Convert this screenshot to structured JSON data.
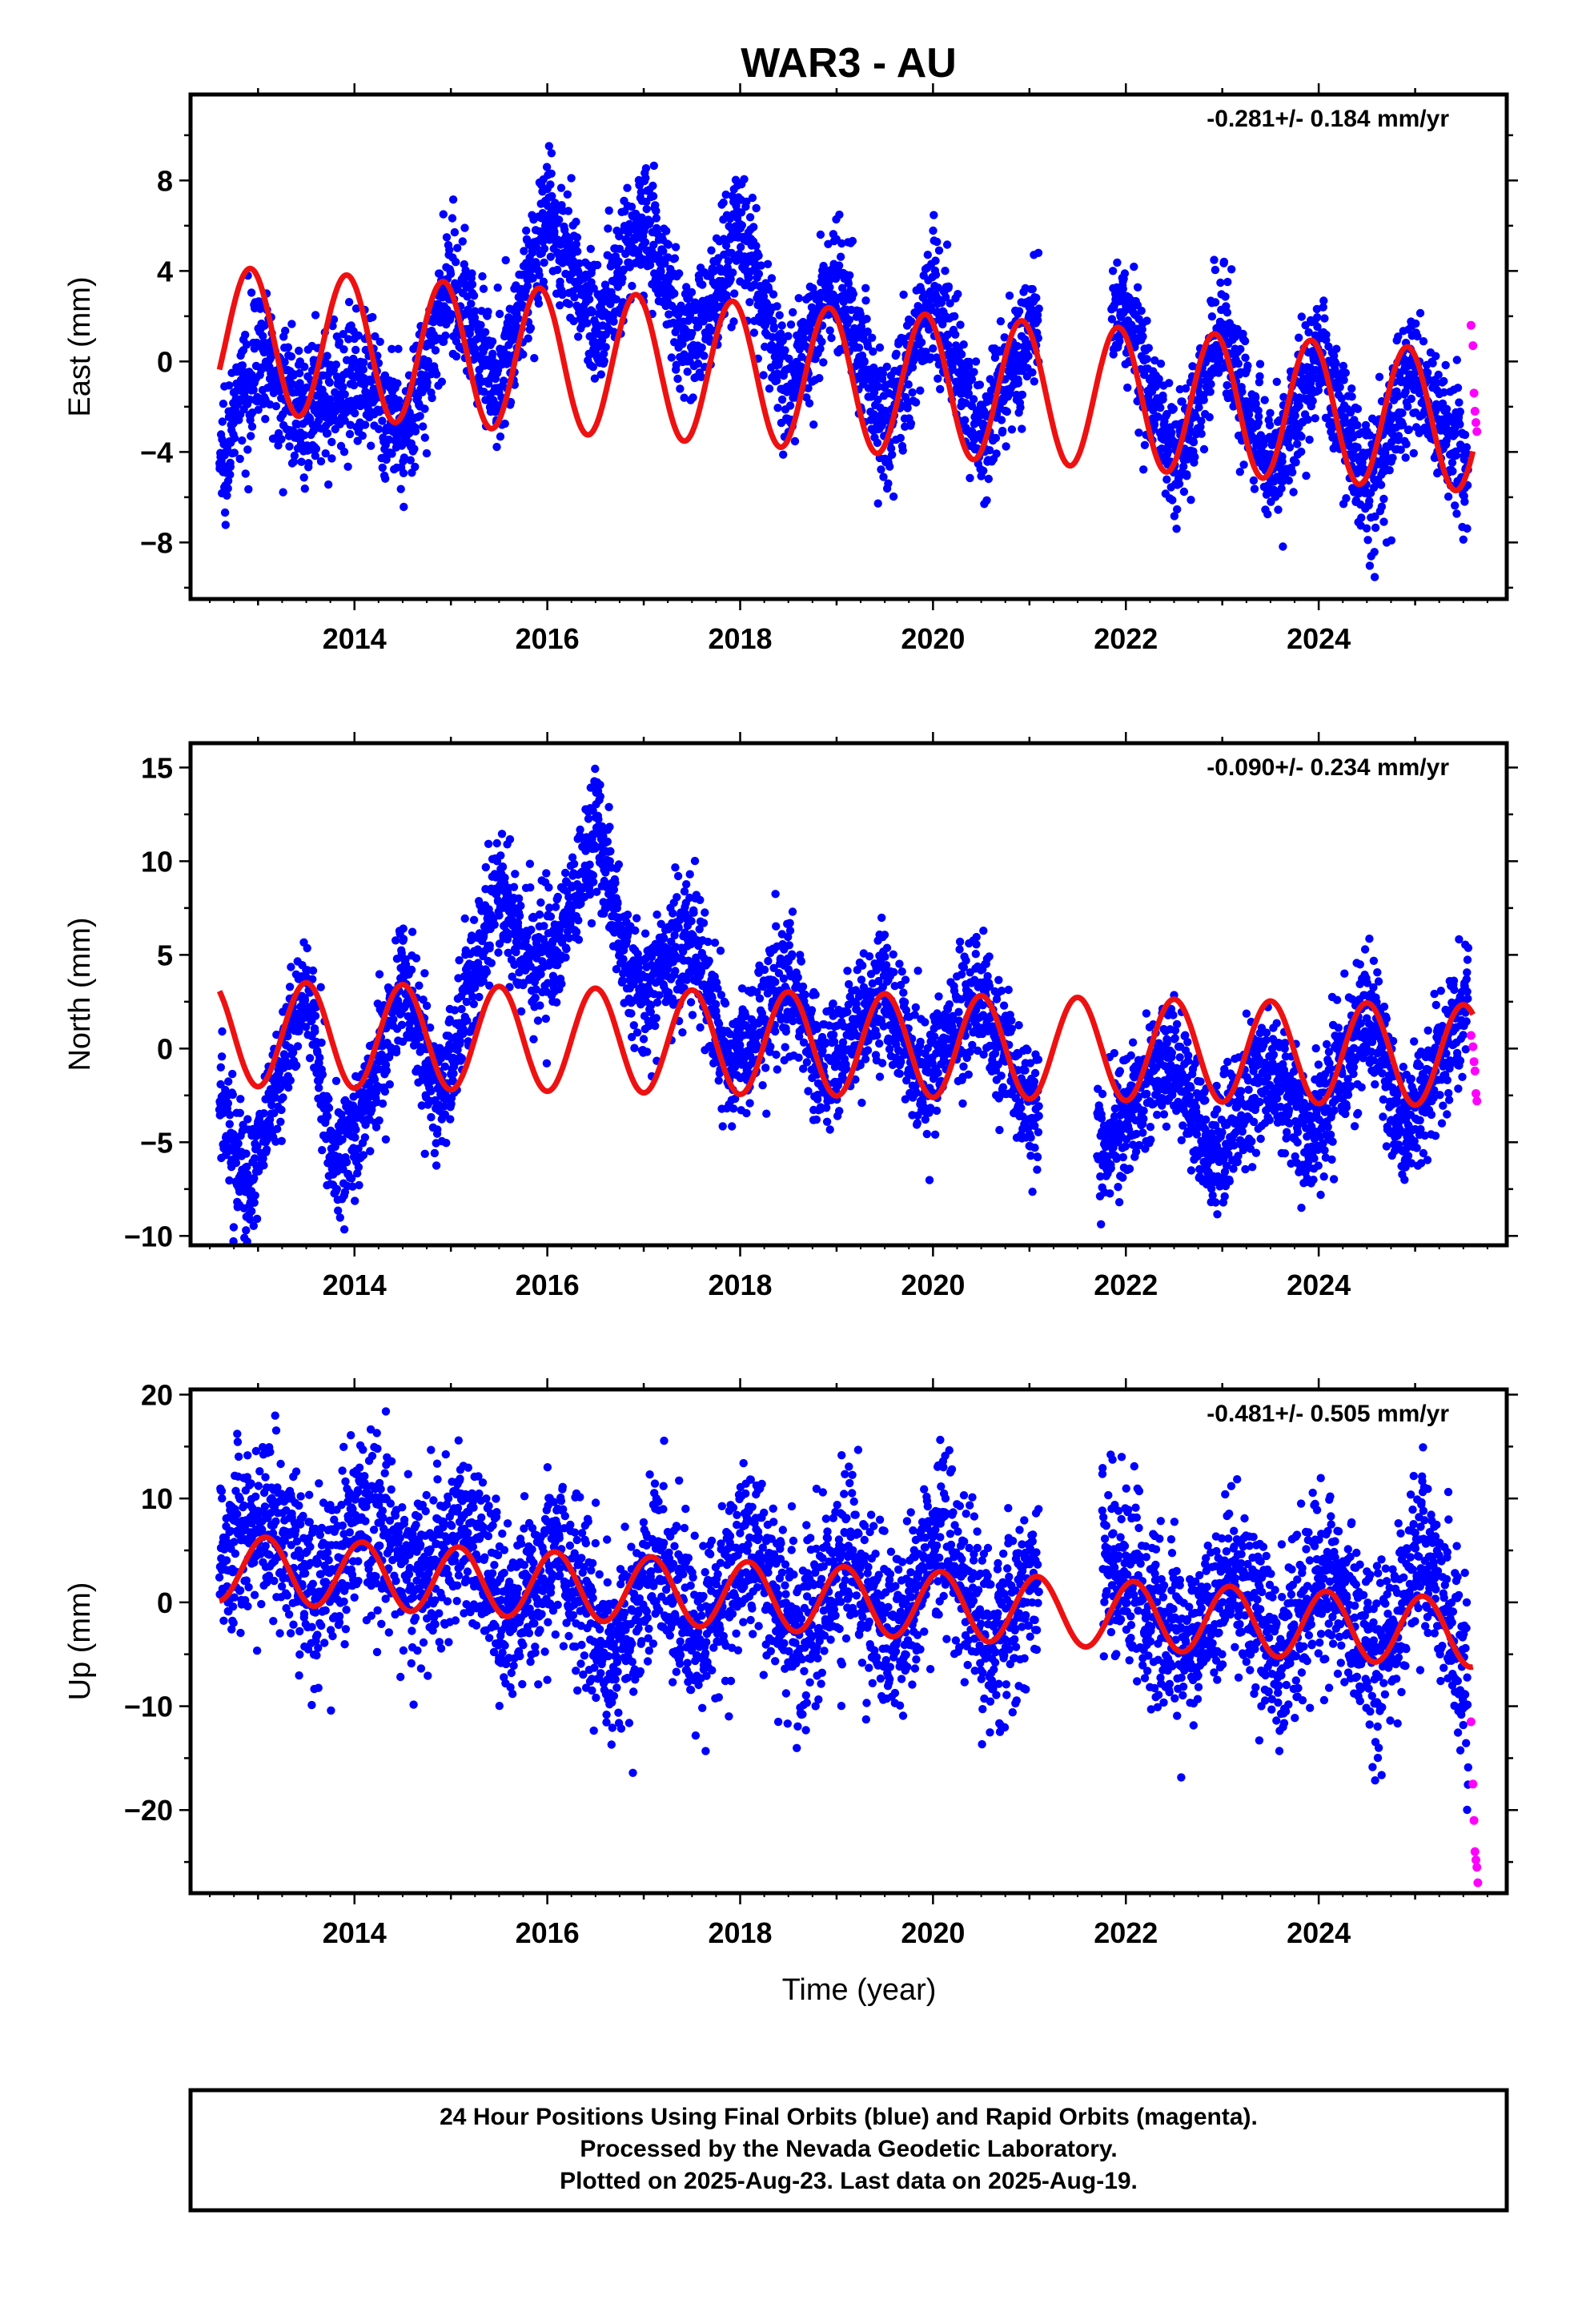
{
  "title": "WAR3 - AU",
  "xlabel": "Time (year)",
  "footer": {
    "line1": "24 Hour Positions Using Final Orbits (blue) and Rapid Orbits (magenta).",
    "line2": "Processed by the Nevada Geodetic Laboratory.",
    "line3": "Plotted on 2025-Aug-23. Last data on 2025-Aug-19."
  },
  "colors": {
    "final": "#0000ff",
    "rapid": "#ff00ff",
    "model": "#ee1111",
    "frame": "#000000"
  },
  "chart_data": [
    {
      "type": "scatter",
      "component": "east",
      "ylabel": "East (mm)",
      "rate": "-0.281+/- 0.184 mm/yr",
      "xlim": [
        2012.3,
        2025.95
      ],
      "ylim": [
        -10.5,
        11.8
      ],
      "xticks": [
        2014,
        2016,
        2018,
        2020,
        2022,
        2024
      ],
      "yticks": [
        -8,
        -4,
        0,
        4,
        8
      ],
      "grid": false,
      "model": {
        "x_start": 2012.6,
        "x_end": 2025.6,
        "offset": 1.0,
        "trend": -0.281,
        "amp_start": 3.2,
        "amp_end": 3.1,
        "phase_peak": 0.92
      },
      "final_series": {
        "x_start": 2012.6,
        "x_end": 2025.55,
        "gaps": [
          [
            2021.1,
            2021.85
          ]
        ],
        "envelope_x": [
          2012.6,
          2013.0,
          2013.5,
          2014.0,
          2014.5,
          2015.0,
          2015.5,
          2016.0,
          2016.5,
          2017.0,
          2017.5,
          2018.0,
          2018.5,
          2019.0,
          2019.5,
          2020.0,
          2020.5,
          2021.0,
          2022.0,
          2022.5,
          2023.0,
          2023.5,
          2024.0,
          2024.5,
          2025.0,
          2025.55
        ],
        "envelope_mean": [
          -4.5,
          0.5,
          -2.5,
          -0.5,
          -3.5,
          3.5,
          -1.0,
          6.5,
          1.5,
          6.5,
          0.5,
          6.0,
          -1.5,
          4.0,
          -3.0,
          3.0,
          -3.5,
          1.5,
          2.0,
          -4.5,
          1.5,
          -5.0,
          0.5,
          -5.5,
          -0.5,
          -5.0
        ],
        "spread": 1.4,
        "count": 4200
      },
      "rapid_series": {
        "x": [
          2025.58,
          2025.6,
          2025.61,
          2025.62,
          2025.63,
          2025.64
        ],
        "y": [
          1.6,
          0.7,
          -1.4,
          -2.2,
          -2.7,
          -3.1
        ]
      }
    },
    {
      "type": "scatter",
      "component": "north",
      "ylabel": "North (mm)",
      "rate": "-0.090+/- 0.234 mm/yr",
      "xlim": [
        2012.3,
        2025.95
      ],
      "ylim": [
        -10.5,
        16.3
      ],
      "xticks": [
        2014,
        2016,
        2018,
        2020,
        2022,
        2024
      ],
      "yticks": [
        -10,
        -5,
        0,
        5,
        10,
        15
      ],
      "grid": false,
      "model": {
        "x_start": 2012.6,
        "x_end": 2025.6,
        "offset": 0.8,
        "trend": -0.09,
        "amp_start": 2.8,
        "amp_end": 2.7,
        "phase_peak": 0.5
      },
      "final_series": {
        "x_start": 2012.6,
        "x_end": 2025.55,
        "gaps": [
          [
            2021.1,
            2021.7
          ]
        ],
        "envelope_x": [
          2012.6,
          2012.9,
          2013.2,
          2013.5,
          2013.8,
          2014.0,
          2014.5,
          2014.9,
          2015.2,
          2015.5,
          2015.9,
          2016.2,
          2016.5,
          2016.8,
          2017.0,
          2017.5,
          2017.9,
          2018.5,
          2018.9,
          2019.5,
          2019.9,
          2020.5,
          2021.0,
          2021.8,
          2022.5,
          2022.9,
          2023.5,
          2023.9,
          2024.5,
          2024.9,
          2025.55
        ],
        "envelope_mean": [
          -3.0,
          -7.5,
          -2.0,
          3.5,
          -6.0,
          -5.0,
          3.5,
          -3.0,
          3.5,
          8.5,
          4.0,
          6.5,
          12.0,
          5.0,
          3.0,
          6.0,
          -1.0,
          3.5,
          -1.0,
          3.0,
          -1.5,
          3.0,
          -3.5,
          -5.0,
          -0.5,
          -6.0,
          -1.0,
          -5.0,
          2.0,
          -4.5,
          3.0
        ],
        "spread": 1.7,
        "count": 4200
      },
      "rapid_series": {
        "x": [
          2025.58,
          2025.6,
          2025.61,
          2025.62,
          2025.63,
          2025.64
        ],
        "y": [
          0.7,
          0.1,
          -0.7,
          -1.2,
          -2.4,
          -2.8
        ]
      }
    },
    {
      "type": "scatter",
      "component": "up",
      "ylabel": "Up (mm)",
      "rate": "-0.481+/- 0.505 mm/yr",
      "xlim": [
        2012.3,
        2025.95
      ],
      "ylim": [
        -28,
        20.5
      ],
      "xticks": [
        2014,
        2016,
        2018,
        2020,
        2022,
        2024
      ],
      "yticks": [
        -20,
        -10,
        0,
        10,
        20
      ],
      "grid": false,
      "model": {
        "x_start": 2012.6,
        "x_end": 2025.6,
        "offset": 3.3,
        "trend": -0.481,
        "amp_start": 3.2,
        "amp_end": 3.3,
        "phase_peak": 0.08
      },
      "final_series": {
        "x_start": 2012.6,
        "x_end": 2025.55,
        "gaps": [
          [
            2021.1,
            2021.75
          ]
        ],
        "envelope_x": [
          2012.6,
          2013.1,
          2013.6,
          2014.1,
          2014.6,
          2015.1,
          2015.6,
          2016.1,
          2016.7,
          2017.1,
          2017.6,
          2018.1,
          2018.6,
          2019.1,
          2019.6,
          2020.1,
          2020.6,
          2021.0,
          2022.0,
          2022.6,
          2023.1,
          2023.6,
          2024.1,
          2024.6,
          2025.1,
          2025.55
        ],
        "envelope_mean": [
          5.0,
          8.0,
          1.0,
          9.0,
          2.0,
          7.0,
          -2.0,
          6.0,
          -6.0,
          4.0,
          -4.0,
          6.0,
          -4.0,
          5.0,
          -4.0,
          7.0,
          -4.0,
          2.0,
          3.0,
          -5.0,
          3.0,
          -5.0,
          3.0,
          -6.0,
          6.0,
          -8.0
        ],
        "spread": 4.2,
        "count": 4200
      },
      "rapid_series": {
        "x": [
          2025.58,
          2025.6,
          2025.61,
          2025.62,
          2025.63,
          2025.64,
          2025.65
        ],
        "y": [
          -11.5,
          -17.5,
          -21.0,
          -24.0,
          -24.8,
          -25.5,
          -27.0
        ]
      }
    }
  ]
}
